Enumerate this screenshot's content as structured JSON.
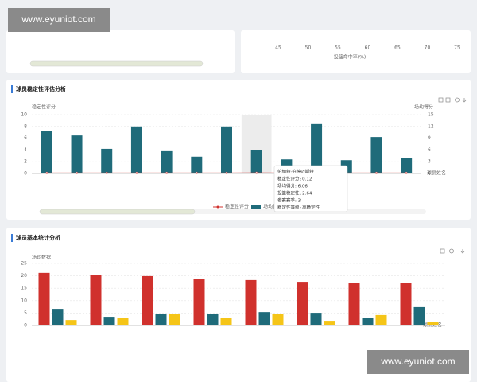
{
  "watermarks": [
    "www.eyuniot.com",
    "www.eyuniot.com"
  ],
  "top_panel": {
    "xticks": [
      45,
      50,
      55,
      60,
      65,
      70,
      75
    ],
    "xlabel": "投篮命中率(%)"
  },
  "chart_data": [
    {
      "type": "bar",
      "title": "球员稳定性评估分析",
      "ylabel": "稳定性评分",
      "y2label": "场均得分",
      "xlabel": "球员姓名",
      "categories": [
        null,
        null,
        null,
        null,
        null,
        null,
        null,
        null,
        null,
        null,
        null,
        null,
        null
      ],
      "series": [
        {
          "name": "稳定性评分",
          "type": "line",
          "color": "#d0312d",
          "values": [
            0.1,
            0.1,
            0.1,
            0.1,
            0.1,
            0.1,
            0.1,
            0.12,
            0.1,
            0.1,
            0.1,
            0.1,
            0.1
          ]
        },
        {
          "name": "场均得分",
          "type": "bar",
          "color": "#1f6b7a",
          "axis": "y2",
          "values": [
            10.9,
            9.7,
            6.3,
            12.0,
            5.7,
            4.3,
            12.0,
            6.06,
            3.6,
            12.6,
            3.4,
            9.3,
            3.9
          ]
        }
      ],
      "ylim": [
        0,
        10
      ],
      "yticks": [
        0,
        2,
        4,
        6,
        8,
        10
      ],
      "y2lim": [
        0,
        15
      ],
      "y2ticks": [
        0,
        3,
        6,
        9,
        12,
        15
      ],
      "grid": true,
      "highlight": 7,
      "tooltip": {
        "title": "伯纳特·伯德迈斯特",
        "lines": [
          "稳定性评分: 0.12",
          "场均得分: 6.06",
          "投篮稳定性: 2.64",
          "参赛赛季: 3",
          "稳定性等级: 高稳定性"
        ]
      }
    },
    {
      "type": "bar",
      "title": "球员基本统计分析",
      "ylabel": "场均数据",
      "xlabel": "球员姓名",
      "categories": [
        null,
        null,
        null,
        null,
        null,
        null,
        null,
        null
      ],
      "series": [
        {
          "color": "#d0312d",
          "values": [
            21.2,
            20.5,
            19.9,
            18.6,
            18.3,
            17.6,
            17.3,
            17.3
          ]
        },
        {
          "color": "#1f6b7a",
          "values": [
            6.7,
            3.5,
            4.8,
            4.8,
            5.4,
            5.1,
            2.9,
            7.4
          ]
        },
        {
          "color": "#f5c518",
          "values": [
            2.2,
            3.2,
            4.5,
            2.9,
            4.8,
            1.9,
            4.2,
            1.6
          ]
        }
      ],
      "ylim": [
        0,
        25
      ],
      "yticks": [
        0,
        5,
        10,
        15,
        20,
        25
      ],
      "grid": true
    }
  ]
}
